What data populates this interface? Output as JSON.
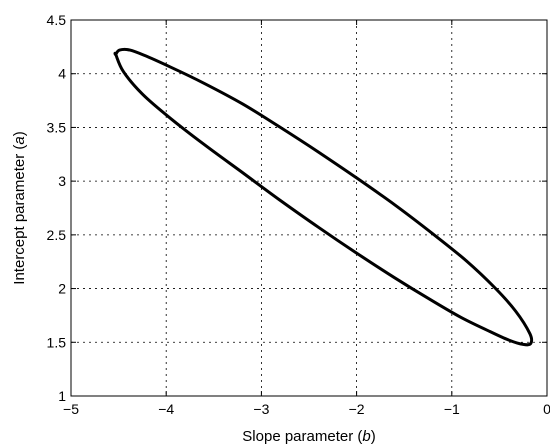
{
  "chart_data": {
    "type": "line",
    "title": "",
    "xlabel_prefix": "Slope parameter (",
    "xlabel_var": "b",
    "xlabel_suffix": ")",
    "ylabel_prefix": "Intercept parameter (",
    "ylabel_var": "a",
    "ylabel_suffix": ")",
    "xlim": [
      -5,
      0
    ],
    "ylim": [
      1,
      4.5
    ],
    "grid": true,
    "legend": "none",
    "x_ticks": [
      -5,
      -4,
      -3,
      -2,
      -1,
      0
    ],
    "x_tick_labels": [
      "−5",
      "−4",
      "−3",
      "−2",
      "−1",
      "0"
    ],
    "y_ticks": [
      1,
      1.5,
      2,
      2.5,
      3,
      3.5,
      4,
      4.5
    ],
    "y_tick_labels": [
      "1",
      "1.5",
      "2",
      "2.5",
      "3",
      "3.5",
      "4",
      "4.5"
    ],
    "series": [
      {
        "closed": true,
        "color": "#000000",
        "x": [
          -4.53,
          -4.49,
          -4.38,
          -4.2,
          -3.95,
          -3.6,
          -3.2,
          -2.8,
          -2.4,
          -2.0,
          -1.6,
          -1.2,
          -0.85,
          -0.55,
          -0.33,
          -0.18,
          -0.17,
          -0.25,
          -0.4,
          -0.6,
          -0.9,
          -1.25,
          -1.6,
          -2.0,
          -2.4,
          -2.8,
          -3.2,
          -3.6,
          -3.95,
          -4.25,
          -4.45,
          -4.53
        ],
        "y": [
          4.18,
          4.22,
          4.22,
          4.16,
          4.06,
          3.91,
          3.72,
          3.5,
          3.27,
          3.03,
          2.78,
          2.51,
          2.26,
          2.01,
          1.79,
          1.58,
          1.49,
          1.48,
          1.52,
          1.6,
          1.73,
          1.91,
          2.1,
          2.33,
          2.57,
          2.82,
          3.08,
          3.34,
          3.58,
          3.81,
          4.02,
          4.18
        ]
      }
    ]
  }
}
